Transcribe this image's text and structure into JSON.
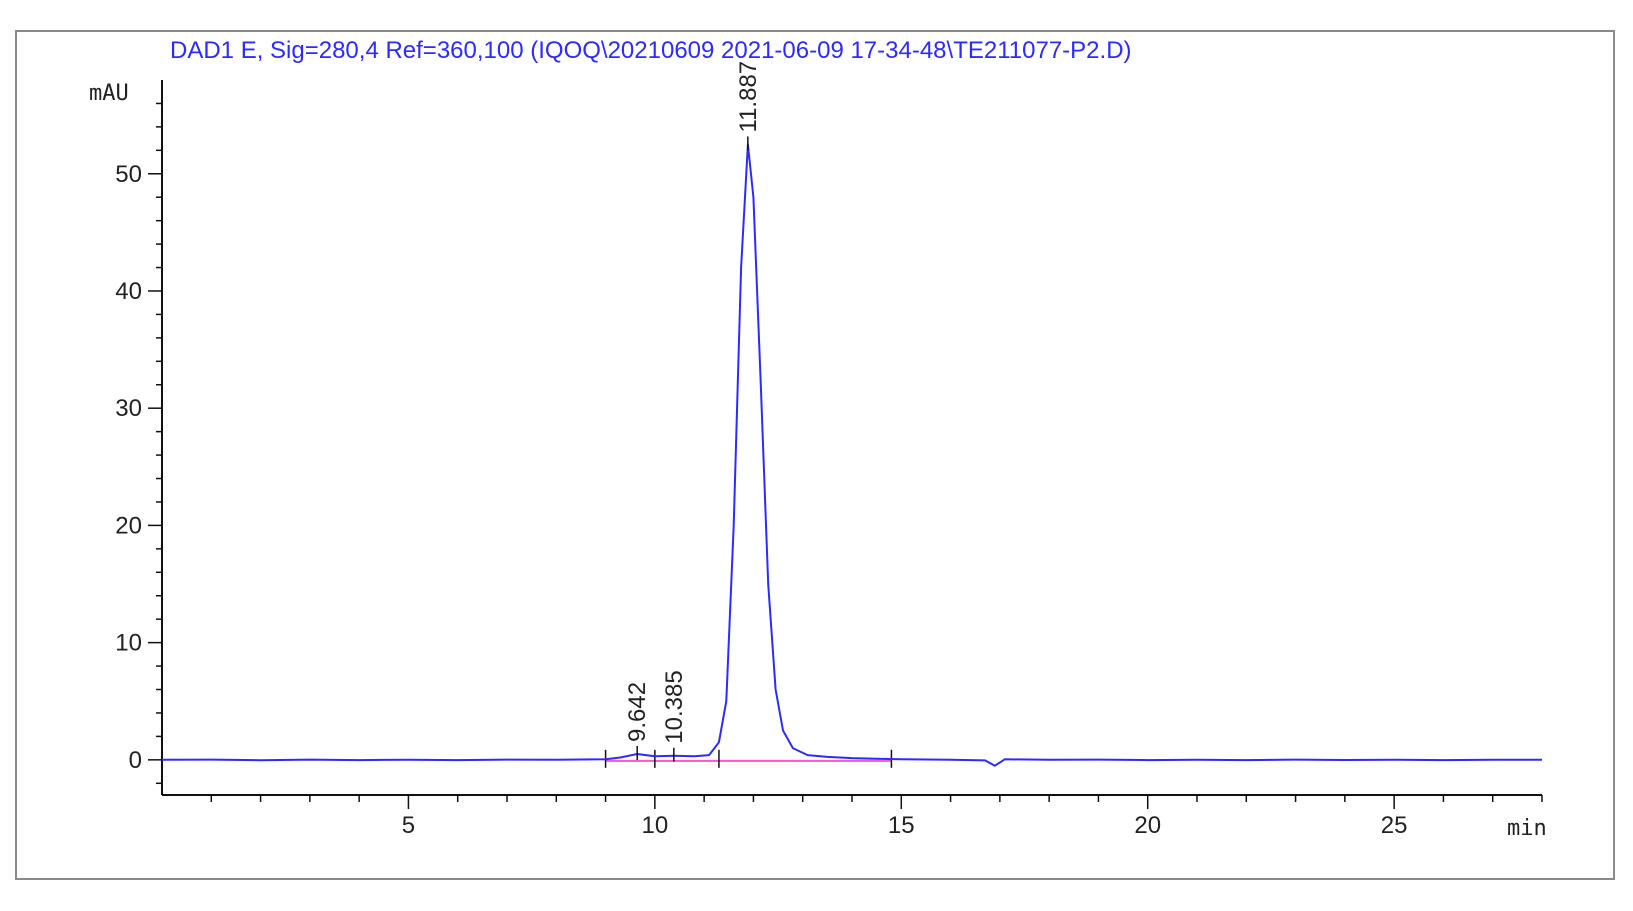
{
  "chart_data": {
    "type": "line",
    "title": "DAD1 E, Sig=280,4 Ref=360,100 (IQOQ\\20210609 2021-06-09 17-34-48\\TE211077-P2.D)",
    "ylabel": "mAU",
    "xlabel": "min",
    "xlim": [
      0,
      28
    ],
    "ylim": [
      -3,
      58
    ],
    "x_ticks": [
      5,
      10,
      15,
      20,
      25
    ],
    "y_ticks": [
      0,
      10,
      20,
      30,
      40,
      50
    ],
    "series": [
      {
        "color": "#2b2bff",
        "points": [
          [
            0,
            0.0
          ],
          [
            1,
            0.02
          ],
          [
            2,
            -0.03
          ],
          [
            3,
            0.02
          ],
          [
            4,
            -0.02
          ],
          [
            5,
            0.01
          ],
          [
            6,
            -0.02
          ],
          [
            7,
            0.02
          ],
          [
            8,
            0.0
          ],
          [
            9,
            0.05
          ],
          [
            9.3,
            0.2
          ],
          [
            9.64,
            0.5
          ],
          [
            10.0,
            0.3
          ],
          [
            10.39,
            0.35
          ],
          [
            10.8,
            0.3
          ],
          [
            11.1,
            0.4
          ],
          [
            11.3,
            1.5
          ],
          [
            11.45,
            5.0
          ],
          [
            11.6,
            20.0
          ],
          [
            11.75,
            42.0
          ],
          [
            11.887,
            52.5
          ],
          [
            12.0,
            48.0
          ],
          [
            12.15,
            32.0
          ],
          [
            12.3,
            15.0
          ],
          [
            12.45,
            6.0
          ],
          [
            12.6,
            2.5
          ],
          [
            12.8,
            1.0
          ],
          [
            13.1,
            0.4
          ],
          [
            13.5,
            0.25
          ],
          [
            14,
            0.15
          ],
          [
            14.5,
            0.1
          ],
          [
            15,
            0.05
          ],
          [
            16,
            0.0
          ],
          [
            16.7,
            -0.05
          ],
          [
            16.9,
            -0.5
          ],
          [
            17.1,
            0.05
          ],
          [
            18,
            0.0
          ],
          [
            19,
            0.02
          ],
          [
            20,
            -0.02
          ],
          [
            21,
            0.01
          ],
          [
            22,
            -0.02
          ],
          [
            23,
            0.02
          ],
          [
            24,
            -0.01
          ],
          [
            25,
            0.01
          ],
          [
            26,
            -0.02
          ],
          [
            27,
            0.01
          ],
          [
            28,
            0.0
          ]
        ]
      }
    ],
    "baseline": {
      "color": "#ff55cc",
      "x": [
        9.0,
        14.8
      ],
      "y": 0
    },
    "integration_marks_x": [
      9.0,
      10.0,
      11.3,
      14.8
    ],
    "peaks": [
      {
        "rt": 9.642,
        "label": "9.642",
        "y": 0.5
      },
      {
        "rt": 10.385,
        "label": "10.385",
        "y": 0.35
      },
      {
        "rt": 11.887,
        "label": "11.887",
        "y": 52.5
      }
    ],
    "grid": false,
    "legend": "none"
  }
}
